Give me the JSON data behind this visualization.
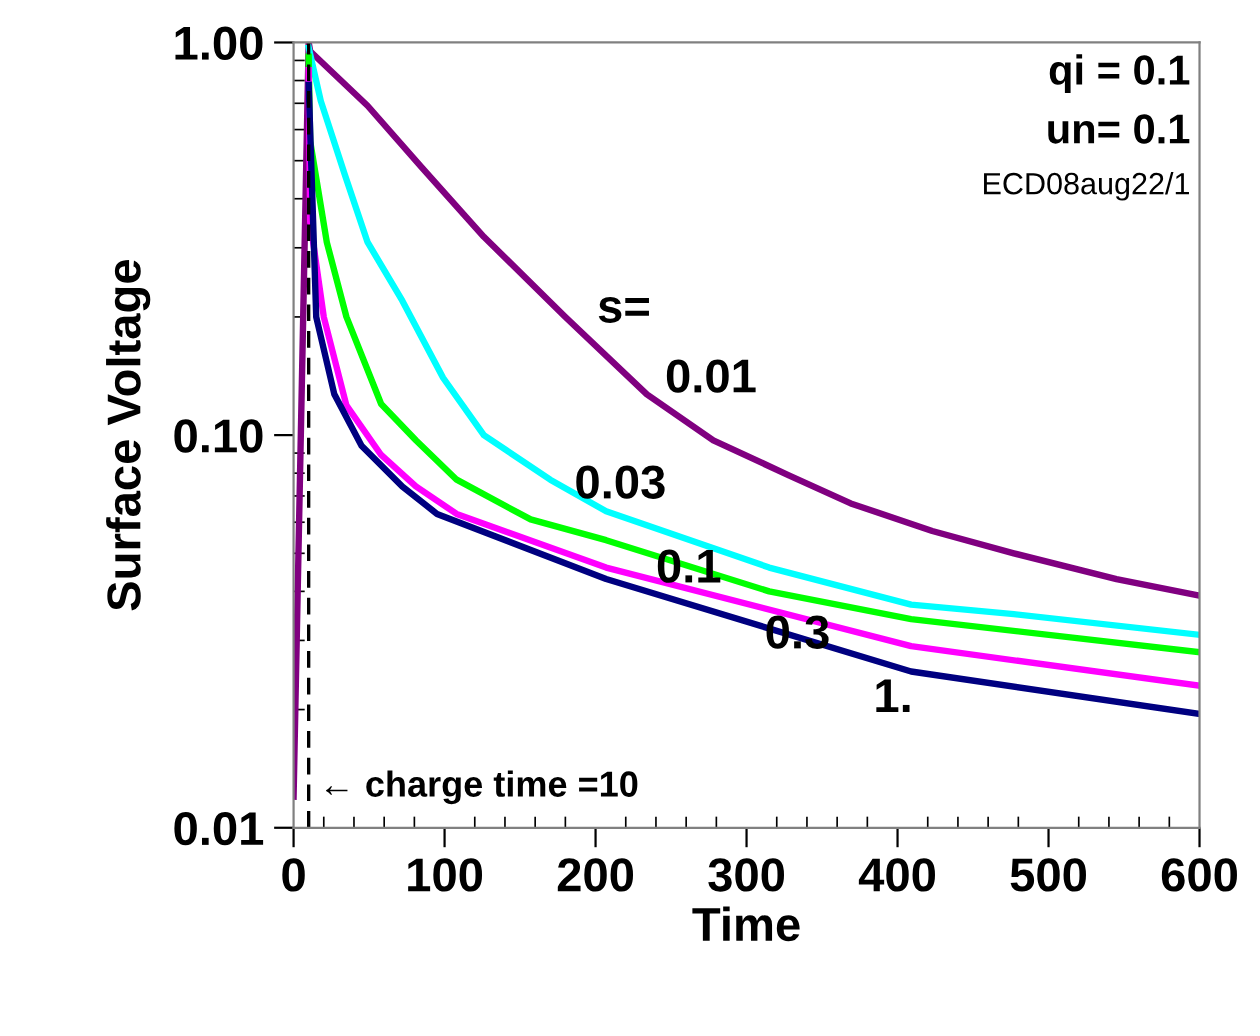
{
  "chart_data": {
    "type": "line",
    "xlabel": "Time",
    "ylabel": "Surface Voltage",
    "log": "y",
    "xlim": [
      0,
      600
    ],
    "xticks": [
      0,
      100,
      200,
      300,
      400,
      500,
      600
    ],
    "ylim": [
      0.01,
      1.0
    ],
    "yticks": [
      {
        "value": 1.0,
        "label": "1.00"
      },
      {
        "value": 0.1,
        "label": "0.10"
      },
      {
        "value": 0.01,
        "label": "0.01"
      }
    ],
    "grid": false,
    "legend": false,
    "marker": "none",
    "line_style": "solid",
    "series": [
      {
        "name": "0.01",
        "color": "#800080",
        "x": [
          0,
          10,
          11,
          49,
          85,
          126,
          180,
          234,
          278,
          328,
          369,
          423,
          477,
          545,
          600
        ],
        "values": [
          0.012,
          1.0,
          0.95,
          0.69,
          0.48,
          0.32,
          0.2,
          0.127,
          0.097,
          0.079,
          0.067,
          0.057,
          0.05,
          0.043,
          0.039
        ]
      },
      {
        "name": "0.03",
        "color": "#00ffff",
        "x": [
          10,
          18,
          34,
          49,
          72,
          99,
          126,
          170,
          207,
          315,
          409,
          477,
          600
        ],
        "values": [
          0.97,
          0.71,
          0.46,
          0.31,
          0.22,
          0.14,
          0.1,
          0.077,
          0.064,
          0.046,
          0.037,
          0.035,
          0.031
        ]
      },
      {
        "name": "0.1",
        "color": "#00ff00",
        "x": [
          10,
          11,
          22,
          35,
          58,
          81,
          108,
          157,
          207,
          315,
          409,
          600
        ],
        "values": [
          0.92,
          0.56,
          0.31,
          0.2,
          0.12,
          0.097,
          0.077,
          0.061,
          0.054,
          0.04,
          0.034,
          0.028
        ]
      },
      {
        "name": "0.3",
        "color": "#ff00ff",
        "x": [
          10,
          11,
          20,
          35,
          58,
          81,
          108,
          207,
          409,
          600
        ],
        "values": [
          0.85,
          0.35,
          0.2,
          0.119,
          0.089,
          0.074,
          0.063,
          0.046,
          0.029,
          0.023
        ]
      },
      {
        "name": "1.",
        "color": "#000080",
        "x": [
          10,
          15,
          27,
          45,
          72,
          95,
          207,
          409,
          600
        ],
        "values": [
          0.78,
          0.2,
          0.127,
          0.094,
          0.074,
          0.063,
          0.043,
          0.025,
          0.0195
        ]
      }
    ],
    "ref_lines": [
      {
        "axis": "x",
        "value": 10,
        "label": "← charge time =10",
        "color": "#000000",
        "line_style": "dashed"
      }
    ],
    "annotations": [
      "qi = 0.1",
      "un= 0.1",
      "ECD08aug22/1",
      "s="
    ]
  }
}
